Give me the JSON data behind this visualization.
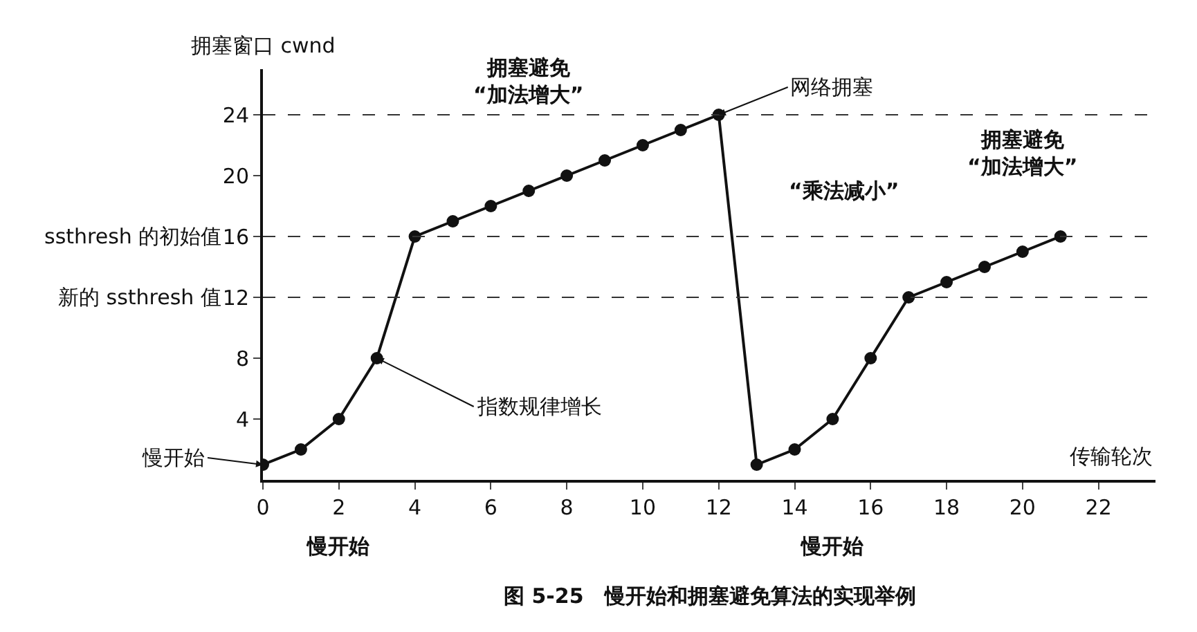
{
  "chart_data": {
    "type": "line",
    "ylabel": "拥塞窗口 cwnd",
    "xlabel": "传输轮次",
    "x": [
      0,
      1,
      2,
      3,
      4,
      5,
      6,
      7,
      8,
      9,
      10,
      11,
      12,
      13,
      14,
      15,
      16,
      17,
      18,
      19,
      20,
      21
    ],
    "series": [
      {
        "color": "#111111",
        "values": [
          1,
          2,
          4,
          8,
          16,
          17,
          18,
          19,
          20,
          21,
          22,
          23,
          24,
          1,
          2,
          4,
          8,
          12,
          13,
          14,
          15,
          16
        ]
      }
    ],
    "xlim": [
      0,
      23.5
    ],
    "ylim": [
      0,
      27
    ],
    "xticks": [
      0,
      2,
      4,
      6,
      8,
      10,
      12,
      14,
      16,
      18,
      20,
      22
    ],
    "yticks": [
      4,
      8,
      12,
      16,
      20,
      24
    ],
    "ref_lines": [
      {
        "axis": "y",
        "value": 24,
        "line_style": "dashed",
        "color": "#333333"
      },
      {
        "axis": "y",
        "value": 16,
        "label": "ssthresh 的初始值",
        "line_style": "dashed",
        "color": "#333333"
      },
      {
        "axis": "y",
        "value": 12,
        "label": "新的 ssthresh 值",
        "line_style": "dashed",
        "color": "#333333"
      }
    ],
    "annotations": [
      {
        "text": "网络拥塞",
        "x": 12,
        "y": 24
      },
      {
        "text": "指数规律增长",
        "x": 3,
        "y": 8
      },
      {
        "text": "慢开始",
        "x": 0,
        "y": 1
      },
      "拥塞避免\n“加法增大”",
      "拥塞避免\n“加法增大”",
      "“乘法减小”",
      "慢开始",
      "慢开始",
      "图 5-25　慢开始和拥塞避免算法的实现举例"
    ],
    "marker": "circle",
    "line_style": "solid"
  }
}
